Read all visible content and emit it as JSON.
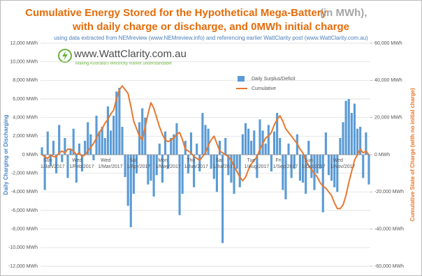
{
  "chart_data": {
    "type": "bar-line",
    "title": "Cumulative Energy Stored for the Hypothetical Mega-Battery",
    "title_note": "(in MWh),",
    "title_line2": "with daily charge or discharge, and 0MWh initial charge",
    "subtitle": "using data extracted from NEMreview (www.NEMreview.info) and referencing earlier WattClarity post (www.WattClarity.com.au)",
    "logo": {
      "name": "www.WattClarity.com.au",
      "tagline": "Making Australia's electricity market understandable"
    },
    "ylabel": "Daily Charging or Discharging",
    "y2label": "Cumulative State of Charge (with no initial charge)",
    "categories": [
      "Sun 1/Jan/2017",
      null,
      null,
      null,
      null,
      null,
      null,
      null,
      null,
      null,
      "Wed 1/Feb/2017",
      null,
      null,
      null,
      null,
      null,
      null,
      null,
      null,
      null,
      "Wed 1/Mar/2017",
      null,
      null,
      null,
      null,
      null,
      null,
      null,
      null,
      null,
      "Sat 1/Apr/2017",
      null,
      null,
      null,
      null,
      null,
      null,
      null,
      null,
      null,
      "Mon 1/May/2017",
      null,
      null,
      null,
      null,
      null,
      null,
      null,
      null,
      null,
      "Thu 1/Jun/2017",
      null,
      null,
      null,
      null,
      null,
      null,
      null,
      null,
      null,
      "Sat 1/Jul/2017",
      null,
      null,
      null,
      null,
      null,
      null,
      null,
      null,
      null,
      null,
      "Tue 1/Aug/2017",
      null,
      null,
      null,
      null,
      null,
      null,
      null,
      null,
      null,
      "Fri 1/Sep/2017",
      null,
      null,
      null,
      null,
      null,
      null,
      null,
      null,
      null,
      "Sun 1/Oct/2017",
      null,
      null,
      null,
      null,
      null,
      null,
      null,
      null,
      null,
      "Wed 1/Nov/2017",
      null,
      null,
      null,
      null,
      null,
      null,
      null,
      null,
      null,
      null,
      null,
      null,
      null
    ],
    "series": [
      {
        "name": "Daily Surplus/Deficit",
        "type": "bar",
        "color": "#5b9bd5",
        "values": [
          800,
          -3800,
          2500,
          -1200,
          1500,
          -2000,
          3200,
          -800,
          1800,
          -2500,
          600,
          2800,
          -3000,
          1200,
          -1800,
          1500,
          3500,
          2200,
          -600,
          4200,
          2500,
          3000,
          1800,
          5200,
          2600,
          4200,
          6800,
          7200,
          3000,
          -2400,
          -5500,
          -7800,
          -4200,
          -2000,
          3500,
          5000,
          4000,
          -3200,
          -2800,
          -4500,
          -2200,
          1200,
          -3000,
          2500,
          -1500,
          1800,
          2200,
          3400,
          -6500,
          -4200,
          1500,
          -2000,
          2400,
          -3500,
          1200,
          -1800,
          4500,
          3200,
          2800,
          -1500,
          -2600,
          -4000,
          1500,
          -9500,
          1800,
          -2200,
          -3000,
          -4200,
          -1500,
          -3500,
          2200,
          3400,
          2800,
          1500,
          2600,
          -2500,
          3800,
          2600,
          1200,
          3200,
          -1800,
          2500,
          4500,
          1800,
          -3800,
          -4800,
          1200,
          -2500,
          -1500,
          2200,
          -2800,
          -3000,
          -4200,
          1500,
          -2500,
          -3800,
          -2000,
          -1500,
          -6200,
          2400,
          -2200,
          -2800,
          -3500,
          -4000,
          1800,
          3500,
          5800,
          6000,
          4500,
          5500,
          2800,
          3000,
          -2500,
          2400,
          -3200
        ]
      },
      {
        "name": "Cumulative",
        "type": "line",
        "axis": "y2",
        "color": "#e8772e",
        "values": [
          0,
          -1000,
          -2000,
          0,
          -1000,
          -1000,
          1000,
          2000,
          1000,
          3000,
          3000,
          2000,
          0,
          1000,
          -1000,
          0,
          2000,
          4000,
          6000,
          9000,
          12000,
          14000,
          17000,
          19000,
          22000,
          24000,
          30000,
          35000,
          37000,
          35000,
          33000,
          26000,
          18000,
          14000,
          10000,
          8000,
          15000,
          22000,
          28000,
          25000,
          20000,
          15000,
          11000,
          8000,
          7000,
          8000,
          9000,
          11000,
          12000,
          8000,
          3000,
          2000,
          1000,
          -1000,
          -2000,
          -3000,
          -1000,
          1000,
          5000,
          8000,
          10000,
          6000,
          2000,
          1000,
          0,
          -1000,
          -3000,
          -6000,
          -9000,
          -12000,
          -14000,
          -12000,
          -8000,
          -5000,
          -3000,
          -1000,
          3000,
          6000,
          9000,
          10000,
          12000,
          16000,
          19000,
          21000,
          18000,
          14000,
          12000,
          10000,
          8000,
          6000,
          3000,
          1000,
          -3000,
          -6000,
          -8000,
          -10000,
          -12000,
          -15000,
          -17000,
          -18000,
          -20000,
          -22000,
          -26000,
          -29000,
          -29000,
          -27000,
          -22000,
          -15000,
          -9000,
          -3000,
          0,
          3000,
          1000,
          2000,
          0
        ]
      }
    ],
    "ylim": [
      -12000,
      12000
    ],
    "yticks": [
      {
        "value": -12000,
        "label": "-12,000 MWh"
      },
      {
        "value": -10000,
        "label": "-10,000 MWh"
      },
      {
        "value": -8000,
        "label": "-8,000 MWh"
      },
      {
        "value": -6000,
        "label": "-6,000 MWh"
      },
      {
        "value": -4000,
        "label": "-4,000 MWh"
      },
      {
        "value": -2000,
        "label": "-2,000 MWh"
      },
      {
        "value": 0,
        "label": "0 MWh"
      },
      {
        "value": 2000,
        "label": "2,000 MWh"
      },
      {
        "value": 4000,
        "label": "4,000 MWh"
      },
      {
        "value": 6000,
        "label": "6,000 MWh"
      },
      {
        "value": 8000,
        "label": "8,000 MWh"
      },
      {
        "value": 10000,
        "label": "10,000 MWh"
      },
      {
        "value": 12000,
        "label": "12,000 MWh"
      }
    ],
    "y2lim": [
      -60000,
      60000
    ],
    "y2ticks": [
      {
        "value": -60000,
        "label": "-60,000 MWh"
      },
      {
        "value": -40000,
        "label": "-40,000 MWh"
      },
      {
        "value": -20000,
        "label": "-20,000 MWh"
      },
      {
        "value": 0,
        "label": "0 MWh"
      },
      {
        "value": 20000,
        "label": "20,000 MWh"
      },
      {
        "value": 40000,
        "label": "40,000 MWh"
      },
      {
        "value": 60000,
        "label": "60,000 MWh"
      }
    ],
    "grid": true
  }
}
